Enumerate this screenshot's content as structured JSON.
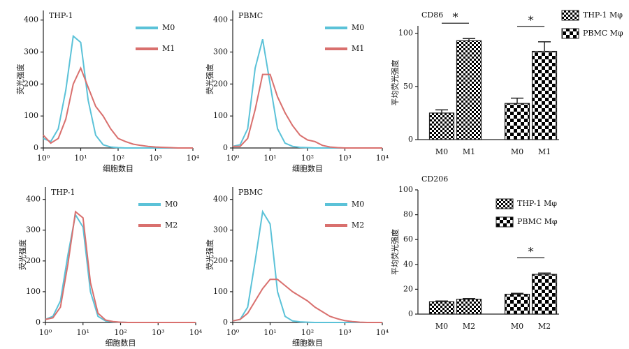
{
  "chart_data": [
    {
      "type": "line",
      "title": "THP-1",
      "xlabel": "细胞数目",
      "ylabel": "荧光强度",
      "xscale": "log",
      "legend": "upper right",
      "x": [
        1,
        1.58,
        2.51,
        3.98,
        6.31,
        10,
        15.8,
        25.1,
        39.8,
        63.1,
        100,
        158,
        251,
        398,
        631,
        1000,
        1580,
        2510,
        3980,
        6310,
        10000
      ],
      "xlim": [
        1,
        10000
      ],
      "xticks": [
        {
          "value": 1,
          "label": "10⁰"
        },
        {
          "value": 10,
          "label": "10¹"
        },
        {
          "value": 100,
          "label": "10²"
        },
        {
          "value": 1000,
          "label": "10³"
        },
        {
          "value": 10000,
          "label": "10⁴"
        }
      ],
      "ylim": [
        0,
        430
      ],
      "yticks": [
        0,
        100,
        200,
        300,
        400
      ],
      "series": [
        {
          "name": "M0",
          "color": "#5bc2d8",
          "values": [
            30,
            20,
            60,
            180,
            350,
            330,
            150,
            40,
            10,
            3,
            1,
            0,
            0,
            0,
            0,
            0,
            0,
            0,
            0,
            0,
            0
          ]
        },
        {
          "name": "M1",
          "color": "#d9706e",
          "values": [
            40,
            15,
            30,
            90,
            200,
            250,
            190,
            130,
            100,
            60,
            30,
            20,
            12,
            8,
            5,
            3,
            2,
            1,
            0,
            0,
            0
          ]
        }
      ]
    },
    {
      "type": "line",
      "title": "PBMC",
      "xlabel": "细胞数目",
      "ylabel": "荧光强度",
      "xscale": "log",
      "legend": "upper right",
      "x": [
        1,
        1.58,
        2.51,
        3.98,
        6.31,
        10,
        15.8,
        25.1,
        39.8,
        63.1,
        100,
        158,
        251,
        398,
        631,
        1000,
        1580,
        2510,
        3980,
        6310,
        10000
      ],
      "xlim": [
        1,
        10000
      ],
      "xticks": [
        {
          "value": 1,
          "label": "10⁰"
        },
        {
          "value": 10,
          "label": "10¹"
        },
        {
          "value": 100,
          "label": "10²"
        },
        {
          "value": 1000,
          "label": "10³"
        },
        {
          "value": 10000,
          "label": "10⁴"
        }
      ],
      "ylim": [
        0,
        430
      ],
      "yticks": [
        0,
        100,
        200,
        300,
        400
      ],
      "series": [
        {
          "name": "M0",
          "color": "#5bc2d8",
          "values": [
            5,
            10,
            60,
            250,
            340,
            200,
            60,
            15,
            5,
            2,
            1,
            0,
            0,
            0,
            0,
            0,
            0,
            0,
            0,
            0,
            0
          ]
        },
        {
          "name": "M1",
          "color": "#d9706e",
          "values": [
            5,
            5,
            30,
            120,
            230,
            230,
            160,
            110,
            70,
            40,
            25,
            20,
            8,
            3,
            1,
            0,
            0,
            0,
            0,
            0,
            0
          ]
        }
      ]
    },
    {
      "type": "bar",
      "title": "CD86",
      "ylabel": "平均荧光强度",
      "legend": "upper right",
      "categories": [
        "M0",
        "M1"
      ],
      "ylim": [
        0,
        107
      ],
      "yticks": [
        0,
        50,
        100
      ],
      "series": [
        {
          "name": "THP-1 Mφ",
          "color": "#000000",
          "values": [
            25,
            93
          ],
          "errors": [
            3,
            2
          ],
          "significance": "*"
        },
        {
          "name": "PBMC Mφ",
          "color": "#000000",
          "values": [
            34,
            83
          ],
          "errors": [
            5,
            9
          ],
          "significance": "*"
        }
      ]
    },
    {
      "type": "line",
      "title": "THP-1",
      "xlabel": "细胞数目",
      "ylabel": "荧光强度",
      "xscale": "log",
      "legend": "upper right",
      "x": [
        1,
        1.58,
        2.51,
        3.98,
        6.31,
        10,
        15.8,
        25.1,
        39.8,
        63.1,
        100,
        158,
        251,
        398,
        631,
        1000,
        1580,
        2510,
        3980,
        6310,
        10000
      ],
      "xlim": [
        1,
        10000
      ],
      "xticks": [
        {
          "value": 1,
          "label": "10⁰"
        },
        {
          "value": 10,
          "label": "10¹"
        },
        {
          "value": 100,
          "label": "10²"
        },
        {
          "value": 1000,
          "label": "10³"
        },
        {
          "value": 10000,
          "label": "10⁴"
        }
      ],
      "ylim": [
        0,
        440
      ],
      "yticks": [
        0,
        100,
        200,
        300,
        400
      ],
      "series": [
        {
          "name": "M0",
          "color": "#5bc2d8",
          "values": [
            10,
            20,
            70,
            220,
            350,
            310,
            100,
            20,
            5,
            2,
            1,
            0,
            0,
            0,
            0,
            0,
            0,
            0,
            0,
            0,
            0
          ]
        },
        {
          "name": "M2",
          "color": "#d9706e",
          "values": [
            10,
            15,
            50,
            190,
            360,
            340,
            130,
            30,
            8,
            3,
            1,
            0,
            0,
            0,
            0,
            0,
            0,
            0,
            0,
            0,
            0
          ]
        }
      ]
    },
    {
      "type": "line",
      "title": "PBMC",
      "xlabel": "细胞数目",
      "ylabel": "荧光强度",
      "xscale": "log",
      "legend": "upper right",
      "x": [
        1,
        1.58,
        2.51,
        3.98,
        6.31,
        10,
        15.8,
        25.1,
        39.8,
        63.1,
        100,
        158,
        251,
        398,
        631,
        1000,
        1580,
        2510,
        3980,
        6310,
        10000
      ],
      "xlim": [
        1,
        10000
      ],
      "xticks": [
        {
          "value": 1,
          "label": "10⁰"
        },
        {
          "value": 10,
          "label": "10¹"
        },
        {
          "value": 100,
          "label": "10²"
        },
        {
          "value": 1000,
          "label": "10³"
        },
        {
          "value": 10000,
          "label": "10⁴"
        }
      ],
      "ylim": [
        0,
        440
      ],
      "yticks": [
        0,
        100,
        200,
        300,
        400
      ],
      "series": [
        {
          "name": "M0",
          "color": "#5bc2d8",
          "values": [
            5,
            10,
            50,
            200,
            360,
            320,
            100,
            20,
            5,
            2,
            1,
            0,
            0,
            0,
            0,
            0,
            0,
            0,
            0,
            0,
            0
          ]
        },
        {
          "name": "M2",
          "color": "#d9706e",
          "values": [
            5,
            10,
            30,
            70,
            110,
            140,
            140,
            120,
            100,
            85,
            70,
            50,
            35,
            20,
            12,
            6,
            3,
            1,
            0,
            0,
            0
          ]
        }
      ]
    },
    {
      "type": "bar",
      "title": "CD206",
      "ylabel": "平均荧光强度",
      "legend": "upper center",
      "categories": [
        "M0",
        "M2"
      ],
      "ylim": [
        0,
        100
      ],
      "yticks": [
        0,
        20,
        40,
        60,
        80,
        100
      ],
      "series": [
        {
          "name": "THP-1 Mφ",
          "color": "#000000",
          "values": [
            10,
            12
          ],
          "errors": [
            0.5,
            0.5
          ]
        },
        {
          "name": "PBMC Mφ",
          "color": "#000000",
          "values": [
            16,
            32
          ],
          "errors": [
            0.7,
            1
          ],
          "significance": "*"
        }
      ]
    }
  ]
}
